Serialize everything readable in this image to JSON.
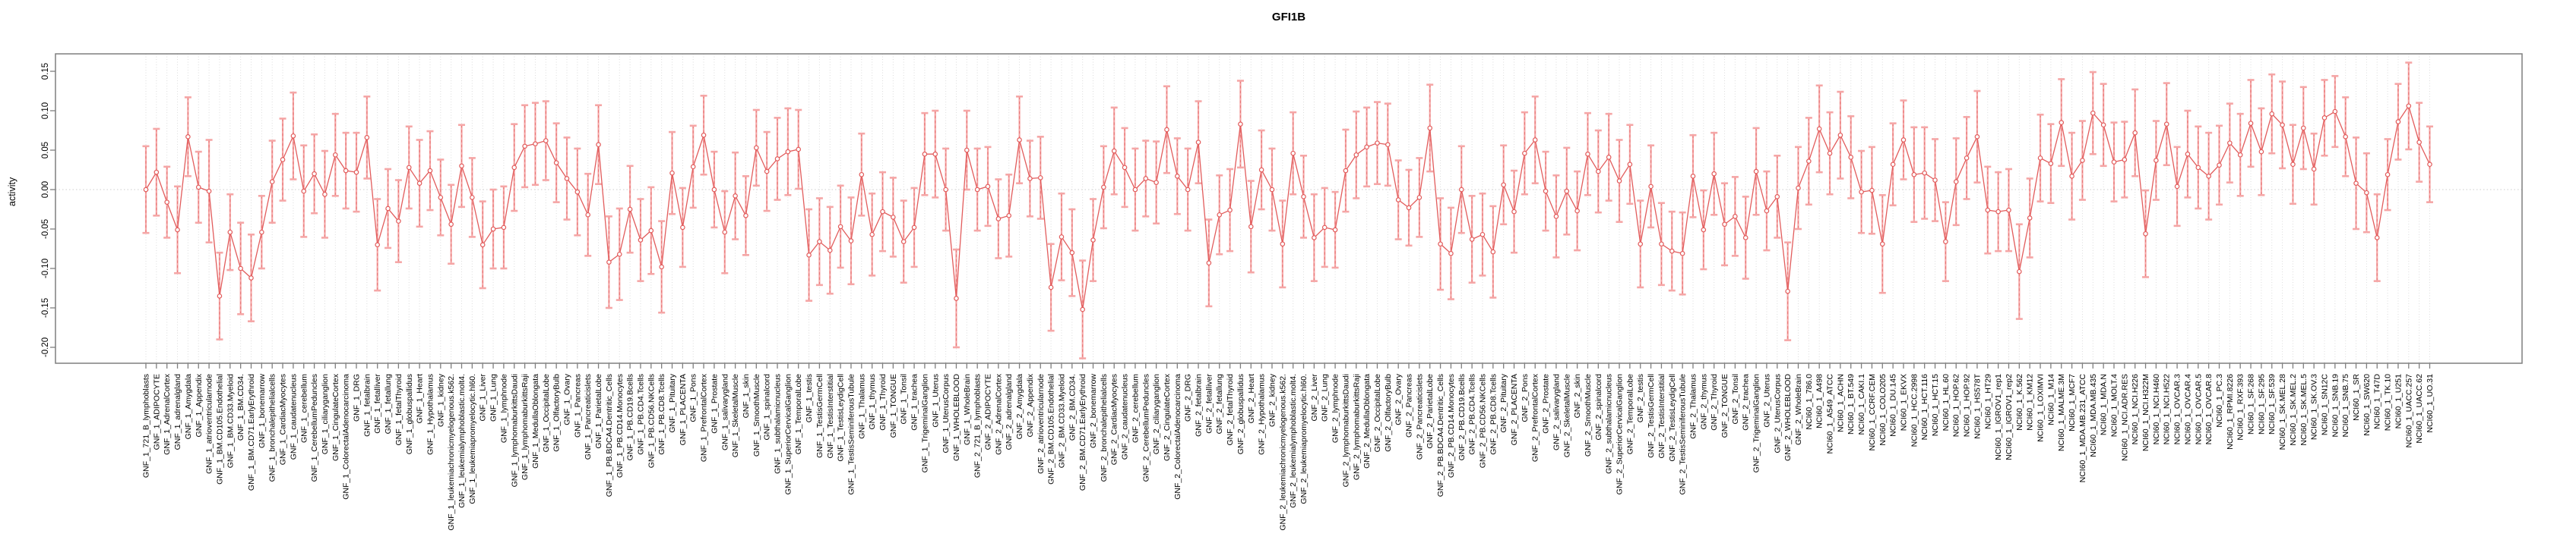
{
  "figure": {
    "title": "GFI1B",
    "y_axis_title": "activity",
    "background": "#ffffff"
  },
  "colors": {
    "box_border": "#7f7f7f",
    "tick": "#7f7f7f",
    "grid": "#dcdcdc",
    "zero_line": "#cccccc",
    "series_line": "#e25c5c",
    "marker_stroke": "#e25c5c",
    "errorbar_pale": "#f5a6a6",
    "errorbar_dash": "#e87878",
    "text": "#000000"
  },
  "chart_data": {
    "type": "line",
    "subtype": "points-with-error-bars",
    "title": "GFI1B",
    "xlabel": "",
    "ylabel": "activity",
    "ylim": [
      -0.22,
      0.172
    ],
    "yticks": [
      0.15,
      0.1,
      0.05,
      0.0,
      -0.05,
      -0.1,
      -0.15,
      -0.2
    ],
    "ytick_labels": [
      "0.15",
      "0.10",
      "0.05",
      "0.00",
      "-0.05",
      "-0.10",
      "-0.15",
      "-0.20"
    ],
    "grid": "vertical-dotted-per-category, dotted-zero-line",
    "legend_position": "none",
    "categories": [
      "GNF_1_721_B_lymphoblasts",
      "GNF_1_ADIPOCYTE",
      "GNF_1_AdrenalCortex",
      "GNF_1_adrenalgland",
      "GNF_1_Amygdala",
      "GNF_1_Appendix",
      "GNF_1_atrioventricularnode",
      "GNF_1_BM.CD105.Endothelial",
      "GNF_1_BM.CD33.Myeloid",
      "GNF_1_BM.CD34.",
      "GNF_1_BM.CD71.EarlyErythroid",
      "GNF_1_bonemarrow",
      "GNF_1_bronchalepithelialcells",
      "GNF_1_CardiacMyocytes",
      "GNF_1_caudatenucleus",
      "GNF_1_cerebellum",
      "GNF_1_CerebellumPeduncles",
      "GNF_1_ciliaryganglion",
      "GNF_1_CingulateCortex",
      "GNF_1_ColorectalAdenocarcinoma",
      "GNF_1_DRG",
      "GNF_1_fetalbrain",
      "GNF_1_fetalliver",
      "GNF_1_fetallung",
      "GNF_1_fetalThyroid",
      "GNF_1_globuspallidus",
      "GNF_1_Heart",
      "GNF_1_Hypothalamus",
      "GNF_1_kidney",
      "GNF_1_leukemiachronicmyelogenous.k562.",
      "GNF_1_leukemialymphoblastic.molt4.",
      "GNF_1_leukemiapromyelocytic.hl60.",
      "GNF_1_Liver",
      "GNF_1_Lung",
      "GNF_1_lymphnode",
      "GNF_1_lymphomaburkittsDaudi",
      "GNF_1_lymphomaburkittsRaji",
      "GNF_1_MedullaOblongata",
      "GNF_1_OccipitalLobe",
      "GNF_1_OlfactoryBulb",
      "GNF_1_Ovary",
      "GNF_1_Pancreas",
      "GNF_1_Pancreaticislets",
      "GNF_1_ParietalLobe",
      "GNF_1_PB.BDCA4.Dentritic_Cells",
      "GNF_1_PB.CD14.Monocytes",
      "GNF_1_PB.CD19.Bcells",
      "GNF_1_PB.CD4.Tcells",
      "GNF_1_PB.CD56.NKCells",
      "GNF_1_PB.CD8.Tcells",
      "GNF_1_Pituitary",
      "GNF_1_PLACENTA",
      "GNF_1_Pons",
      "GNF_1_PrefrontalCortex",
      "GNF_1_Prostate",
      "GNF_1_salivarygland",
      "GNF_1_SkeletalMuscle",
      "GNF_1_skin",
      "GNF_1_SmoothMuscle",
      "GNF_1_spinalcord",
      "GNF_1_subthalamicnucleus",
      "GNF_1_SuperiorCervicalGanglion",
      "GNF_1_TemporalLobe",
      "GNF_1_testis",
      "GNF_1_TestisGermCell",
      "GNF_1_TestisInterstitial",
      "GNF_1_TestisLeydigCell",
      "GNF_1_TestisSeminiferousTubule",
      "GNF_1_Thalamus",
      "GNF_1_thymus",
      "GNF_1_Thyroid",
      "GNF_1_TONGUE",
      "GNF_1_Tonsil",
      "GNF_1_trachea",
      "GNF_1_TrigeminalGanglion",
      "GNF_1_Uterus",
      "GNF_1_UterusCorpus",
      "GNF_1_WHOLEBLOOD",
      "GNF_1_WholeBrain",
      "GNF_2_721_B_lymphoblasts",
      "GNF_2_ADIPOCYTE",
      "GNF_2_AdrenalCortex",
      "GNF_2_adrenalgland",
      "GNF_2_Amygdala",
      "GNF_2_Appendix",
      "GNF_2_atrioventricularnode",
      "GNF_2_BM.CD105.Endothelial",
      "GNF_2_BM.CD33.Myeloid",
      "GNF_2_BM.CD34.",
      "GNF_2_BM.CD71.EarlyErythroid",
      "GNF_2_bonemarrow",
      "GNF_2_bronchalepithelialcells",
      "GNF_2_CardiacMyocytes",
      "GNF_2_caudatenucleus",
      "GNF_2_cerebellum",
      "GNF_2_CerebellumPeduncles",
      "GNF_2_ciliaryganglion",
      "GNF_2_CingulateCortex",
      "GNF_2_ColorectalAdenocarcinoma",
      "GNF_2_DRG",
      "GNF_2_fetalbrain",
      "GNF_2_fetalliver",
      "GNF_2_fetallung",
      "GNF_2_fetalThyroid",
      "GNF_2_globuspallidus",
      "GNF_2_Heart",
      "GNF_2_Hypothalamus",
      "GNF_2_kidney",
      "GNF_2_leukemiachronicmyelogenous.k562.",
      "GNF_2_leukemialymphoblastic.molt4.",
      "GNF_2_leukemiapromyelocytic.hl60.",
      "GNF_2_Liver",
      "GNF_2_Lung",
      "GNF_2_lymphnode",
      "GNF_2_lymphomaburkittsDaudi",
      "GNF_2_lymphomaburkittsRaji",
      "GNF_2_MedullaOblongata",
      "GNF_2_OccipitalLobe",
      "GNF_2_OlfactoryBulb",
      "GNF_2_Ovary",
      "GNF_2_Pancreas",
      "GNF_2_Pancreaticislets",
      "GNF_2_ParietalLobe",
      "GNF_2_PB.BDCA4.Dentritic_Cells",
      "GNF_2_PB.CD14.Monocytes",
      "GNF_2_PB.CD19.Bcells",
      "GNF_2_PB.CD4.Tcells",
      "GNF_2_PB.CD56.NKCells",
      "GNF_2_PB.CD8.Tcells",
      "GNF_2_Pituitary",
      "GNF_2_PLACENTA",
      "GNF_2_Pons",
      "GNF_2_PrefrontalCortex",
      "GNF_2_Prostate",
      "GNF_2_salivarygland",
      "GNF_2_SkeletalMuscle",
      "GNF_2_skin",
      "GNF_2_SmoothMuscle",
      "GNF_2_spinalcord",
      "GNF_2_subthalamicnucleus",
      "GNF_2_SuperiorCervicalGanglion",
      "GNF_2_TemporalLobe",
      "GNF_2_testis",
      "GNF_2_TestisGermCell",
      "GNF_2_TestisInterstitial",
      "GNF_2_TestisLeydigCell",
      "GNF_2_TestisSeminiferousTubule",
      "GNF_2_Thalamus",
      "GNF_2_thymus",
      "GNF_2_Thyroid",
      "GNF_2_TONGUE",
      "GNF_2_Tonsil",
      "GNF_2_trachea",
      "GNF_2_TrigeminalGanglion",
      "GNF_2_Uterus",
      "GNF_2_UterusCorpus",
      "GNF_2_WHOLEBLOOD",
      "GNF_2_WholeBrain",
      "NCI60_1_786.0",
      "NCI60_1_A498",
      "NCI60_1_A549_ATCC",
      "NCI60_1_ACHN",
      "NCI60_1_BT.549",
      "NCI60_1_CAKI.1",
      "NCI60_1_CCRF.CEM",
      "NCI60_1_COLO205",
      "NCI60_1_DU.145",
      "NCI60_1_EKVX",
      "NCI60_1_HCC.2998",
      "NCI60_1_HCT.116",
      "NCI60_1_HCT.15",
      "NCI60_1_HL.60",
      "NCI60_1_HOP.62",
      "NCI60_1_HOP.92",
      "NCI60_1_HS578T",
      "NCI60_1_HT29",
      "NCI60_1_IGROV1_rep1",
      "NCI60_1_IGROV1_rep2",
      "NCI60_1_K.562",
      "NCI60_1_KM12",
      "NCI60_1_LOXIMVI",
      "NCI60_1_M14",
      "NCI60_1_MALME.3M",
      "NCI60_1_MCF7",
      "NCI60_1_MDA.MB.231_ATCC",
      "NCI60_1_MDA.MB.435",
      "NCI60_1_MDA.N",
      "NCI60_1_MOLT.4",
      "NCI60_1_NCI.ADR.RES",
      "NCI60_1_NCI.H226",
      "NCI60_1_NCI.H322M",
      "NCI60_1_NCI.H460",
      "NCI60_1_NCI.H522",
      "NCI60_1_OVCAR.3",
      "NCI60_1_OVCAR.4",
      "NCI60_1_OVCAR.5",
      "NCI60_1_OVCAR.8",
      "NCI60_1_PC.3",
      "NCI60_1_RPMI.8226",
      "NCI60_1_RXF.393",
      "NCI60_1_SF.268",
      "NCI60_1_SF.295",
      "NCI60_1_SF.539",
      "NCI60_1_SK.MEL.28",
      "NCI60_1_SK.MEL.2",
      "NCI60_1_SK.MEL.5",
      "NCI60_1_SK.OV.3",
      "NCI60_1_SN12C",
      "NCI60_1_SNB.19",
      "NCI60_1_SNB.75",
      "NCI60_1_SR",
      "NCI60_1_SW620",
      "NCI60_1_T47D",
      "NCI60_1_TK.10",
      "NCI60_1_U251",
      "NCI60_1_UACC.257",
      "NCI60_1_UACC.62",
      "NCI60_1_UO.31"
    ],
    "values": [
      0.0,
      0.022,
      -0.016,
      -0.051,
      0.067,
      0.003,
      -0.002,
      -0.135,
      -0.054,
      -0.1,
      -0.112,
      -0.054,
      0.01,
      0.038,
      0.068,
      -0.002,
      0.02,
      -0.006,
      0.044,
      0.024,
      0.022,
      0.066,
      -0.07,
      -0.024,
      -0.04,
      0.028,
      0.008,
      0.024,
      -0.01,
      -0.044,
      0.03,
      -0.01,
      -0.07,
      -0.05,
      -0.048,
      0.028,
      0.055,
      0.058,
      0.062,
      0.034,
      0.014,
      -0.003,
      -0.032,
      0.057,
      -0.092,
      -0.082,
      -0.025,
      -0.064,
      -0.052,
      -0.098,
      0.021,
      -0.048,
      0.029,
      0.069,
      0.0,
      -0.054,
      -0.008,
      -0.033,
      0.053,
      0.023,
      0.039,
      0.048,
      0.051,
      -0.083,
      -0.066,
      -0.077,
      -0.047,
      -0.065,
      0.019,
      -0.057,
      -0.028,
      -0.035,
      -0.066,
      -0.048,
      0.045,
      0.045,
      0.0,
      -0.138,
      0.05,
      0.0,
      0.004,
      -0.037,
      -0.033,
      0.063,
      0.014,
      0.015,
      -0.124,
      -0.06,
      -0.08,
      -0.152,
      -0.064,
      0.003,
      0.049,
      0.028,
      0.0,
      0.014,
      0.009,
      0.076,
      0.017,
      0.0,
      0.06,
      -0.093,
      -0.032,
      -0.026,
      0.083,
      -0.047,
      0.025,
      0.0,
      -0.069,
      0.046,
      -0.009,
      -0.061,
      -0.048,
      -0.051,
      0.024,
      0.044,
      0.054,
      0.059,
      0.057,
      -0.013,
      -0.023,
      -0.01,
      0.078,
      -0.069,
      -0.081,
      0.0,
      -0.063,
      -0.057,
      -0.079,
      0.006,
      -0.028,
      0.046,
      0.063,
      -0.002,
      -0.034,
      -0.002,
      -0.027,
      0.045,
      0.023,
      0.041,
      0.011,
      0.032,
      -0.069,
      0.004,
      -0.069,
      -0.078,
      -0.081,
      0.017,
      -0.051,
      0.02,
      -0.044,
      -0.034,
      -0.061,
      0.023,
      -0.027,
      -0.009,
      -0.129,
      0.002,
      0.036,
      0.077,
      0.046,
      0.069,
      0.041,
      -0.003,
      -0.001,
      -0.069,
      0.032,
      0.063,
      0.019,
      0.021,
      0.012,
      -0.066,
      0.01,
      0.04,
      0.067,
      -0.026,
      -0.028,
      -0.026,
      -0.104,
      -0.036,
      0.04,
      0.033,
      0.085,
      0.017,
      0.037,
      0.097,
      0.082,
      0.035,
      0.038,
      0.072,
      -0.056,
      0.037,
      0.083,
      0.004,
      0.045,
      0.028,
      0.017,
      0.031,
      0.059,
      0.044,
      0.084,
      0.048,
      0.096,
      0.082,
      0.032,
      0.078,
      0.026,
      0.091,
      0.099,
      0.067,
      0.008,
      -0.004,
      -0.061,
      0.019,
      0.086,
      0.106,
      0.06,
      0.032
    ],
    "errors": [
      0.055,
      0.055,
      0.045,
      0.055,
      0.05,
      0.045,
      0.065,
      0.055,
      0.048,
      0.058,
      0.055,
      0.046,
      0.052,
      0.052,
      0.055,
      0.058,
      0.05,
      0.055,
      0.052,
      0.048,
      0.05,
      0.052,
      0.058,
      0.05,
      0.052,
      0.052,
      0.055,
      0.05,
      0.048,
      0.05,
      0.052,
      0.05,
      0.055,
      0.05,
      0.052,
      0.055,
      0.052,
      0.052,
      0.05,
      0.05,
      0.052,
      0.055,
      0.052,
      0.05,
      0.058,
      0.058,
      0.055,
      0.052,
      0.055,
      0.058,
      0.052,
      0.05,
      0.052,
      0.05,
      0.048,
      0.052,
      0.055,
      0.05,
      0.048,
      0.05,
      0.052,
      0.055,
      0.05,
      0.058,
      0.055,
      0.055,
      0.052,
      0.055,
      0.052,
      0.052,
      0.05,
      0.05,
      0.052,
      0.05,
      0.052,
      0.055,
      0.052,
      0.062,
      0.05,
      0.052,
      0.05,
      0.05,
      0.052,
      0.055,
      0.048,
      0.052,
      0.055,
      0.055,
      0.055,
      0.062,
      0.052,
      0.052,
      0.055,
      0.05,
      0.052,
      0.048,
      0.052,
      0.055,
      0.048,
      0.052,
      0.052,
      0.055,
      0.05,
      0.052,
      0.055,
      0.058,
      0.05,
      0.052,
      0.055,
      0.052,
      0.052,
      0.055,
      0.05,
      0.048,
      0.052,
      0.055,
      0.05,
      0.052,
      0.052,
      0.05,
      0.048,
      0.05,
      0.055,
      0.058,
      0.058,
      0.055,
      0.055,
      0.052,
      0.058,
      0.05,
      0.052,
      0.052,
      0.055,
      0.05,
      0.052,
      0.055,
      0.05,
      0.052,
      0.052,
      0.055,
      0.052,
      0.05,
      0.055,
      0.052,
      0.052,
      0.05,
      0.052,
      0.052,
      0.05,
      0.052,
      0.052,
      0.05,
      0.052,
      0.055,
      0.05,
      0.052,
      0.062,
      0.052,
      0.055,
      0.055,
      0.052,
      0.055,
      0.052,
      0.052,
      0.055,
      0.062,
      0.052,
      0.05,
      0.06,
      0.058,
      0.052,
      0.05,
      0.055,
      0.052,
      0.058,
      0.055,
      0.05,
      0.052,
      0.06,
      0.05,
      0.055,
      0.05,
      0.055,
      0.055,
      0.05,
      0.052,
      0.052,
      0.05,
      0.048,
      0.055,
      0.055,
      0.05,
      0.052,
      0.05,
      0.055,
      0.052,
      0.055,
      0.05,
      0.05,
      0.052,
      0.055,
      0.055,
      0.05,
      0.055,
      0.05,
      0.052,
      0.045,
      0.048,
      0.045,
      0.05,
      0.058,
      0.05,
      0.055,
      0.045,
      0.048,
      0.055,
      0.05,
      0.048
    ]
  }
}
